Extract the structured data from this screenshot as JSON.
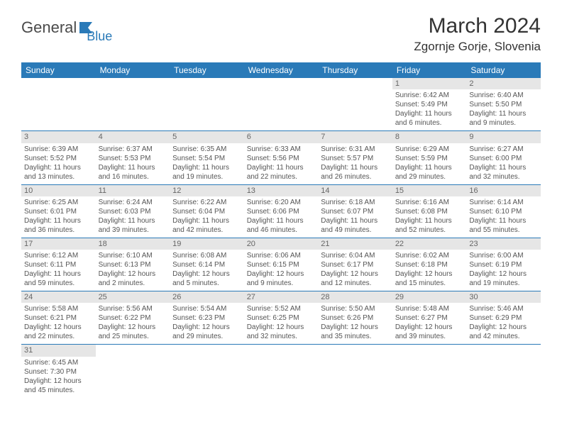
{
  "logo": {
    "text1": "General",
    "text2": "Blue"
  },
  "title": {
    "month": "March 2024",
    "location": "Zgornje Gorje, Slovenia"
  },
  "colors": {
    "headerBg": "#2a7ab8",
    "headerText": "#ffffff",
    "dayBg": "#e6e6e6",
    "ruleColor": "#2a7ab8"
  },
  "weekdays": [
    "Sunday",
    "Monday",
    "Tuesday",
    "Wednesday",
    "Thursday",
    "Friday",
    "Saturday"
  ],
  "startOffset": 5,
  "days": [
    {
      "n": "1",
      "sunrise": "Sunrise: 6:42 AM",
      "sunset": "Sunset: 5:49 PM",
      "day1": "Daylight: 11 hours",
      "day2": "and 6 minutes."
    },
    {
      "n": "2",
      "sunrise": "Sunrise: 6:40 AM",
      "sunset": "Sunset: 5:50 PM",
      "day1": "Daylight: 11 hours",
      "day2": "and 9 minutes."
    },
    {
      "n": "3",
      "sunrise": "Sunrise: 6:39 AM",
      "sunset": "Sunset: 5:52 PM",
      "day1": "Daylight: 11 hours",
      "day2": "and 13 minutes."
    },
    {
      "n": "4",
      "sunrise": "Sunrise: 6:37 AM",
      "sunset": "Sunset: 5:53 PM",
      "day1": "Daylight: 11 hours",
      "day2": "and 16 minutes."
    },
    {
      "n": "5",
      "sunrise": "Sunrise: 6:35 AM",
      "sunset": "Sunset: 5:54 PM",
      "day1": "Daylight: 11 hours",
      "day2": "and 19 minutes."
    },
    {
      "n": "6",
      "sunrise": "Sunrise: 6:33 AM",
      "sunset": "Sunset: 5:56 PM",
      "day1": "Daylight: 11 hours",
      "day2": "and 22 minutes."
    },
    {
      "n": "7",
      "sunrise": "Sunrise: 6:31 AM",
      "sunset": "Sunset: 5:57 PM",
      "day1": "Daylight: 11 hours",
      "day2": "and 26 minutes."
    },
    {
      "n": "8",
      "sunrise": "Sunrise: 6:29 AM",
      "sunset": "Sunset: 5:59 PM",
      "day1": "Daylight: 11 hours",
      "day2": "and 29 minutes."
    },
    {
      "n": "9",
      "sunrise": "Sunrise: 6:27 AM",
      "sunset": "Sunset: 6:00 PM",
      "day1": "Daylight: 11 hours",
      "day2": "and 32 minutes."
    },
    {
      "n": "10",
      "sunrise": "Sunrise: 6:25 AM",
      "sunset": "Sunset: 6:01 PM",
      "day1": "Daylight: 11 hours",
      "day2": "and 36 minutes."
    },
    {
      "n": "11",
      "sunrise": "Sunrise: 6:24 AM",
      "sunset": "Sunset: 6:03 PM",
      "day1": "Daylight: 11 hours",
      "day2": "and 39 minutes."
    },
    {
      "n": "12",
      "sunrise": "Sunrise: 6:22 AM",
      "sunset": "Sunset: 6:04 PM",
      "day1": "Daylight: 11 hours",
      "day2": "and 42 minutes."
    },
    {
      "n": "13",
      "sunrise": "Sunrise: 6:20 AM",
      "sunset": "Sunset: 6:06 PM",
      "day1": "Daylight: 11 hours",
      "day2": "and 46 minutes."
    },
    {
      "n": "14",
      "sunrise": "Sunrise: 6:18 AM",
      "sunset": "Sunset: 6:07 PM",
      "day1": "Daylight: 11 hours",
      "day2": "and 49 minutes."
    },
    {
      "n": "15",
      "sunrise": "Sunrise: 6:16 AM",
      "sunset": "Sunset: 6:08 PM",
      "day1": "Daylight: 11 hours",
      "day2": "and 52 minutes."
    },
    {
      "n": "16",
      "sunrise": "Sunrise: 6:14 AM",
      "sunset": "Sunset: 6:10 PM",
      "day1": "Daylight: 11 hours",
      "day2": "and 55 minutes."
    },
    {
      "n": "17",
      "sunrise": "Sunrise: 6:12 AM",
      "sunset": "Sunset: 6:11 PM",
      "day1": "Daylight: 11 hours",
      "day2": "and 59 minutes."
    },
    {
      "n": "18",
      "sunrise": "Sunrise: 6:10 AM",
      "sunset": "Sunset: 6:13 PM",
      "day1": "Daylight: 12 hours",
      "day2": "and 2 minutes."
    },
    {
      "n": "19",
      "sunrise": "Sunrise: 6:08 AM",
      "sunset": "Sunset: 6:14 PM",
      "day1": "Daylight: 12 hours",
      "day2": "and 5 minutes."
    },
    {
      "n": "20",
      "sunrise": "Sunrise: 6:06 AM",
      "sunset": "Sunset: 6:15 PM",
      "day1": "Daylight: 12 hours",
      "day2": "and 9 minutes."
    },
    {
      "n": "21",
      "sunrise": "Sunrise: 6:04 AM",
      "sunset": "Sunset: 6:17 PM",
      "day1": "Daylight: 12 hours",
      "day2": "and 12 minutes."
    },
    {
      "n": "22",
      "sunrise": "Sunrise: 6:02 AM",
      "sunset": "Sunset: 6:18 PM",
      "day1": "Daylight: 12 hours",
      "day2": "and 15 minutes."
    },
    {
      "n": "23",
      "sunrise": "Sunrise: 6:00 AM",
      "sunset": "Sunset: 6:19 PM",
      "day1": "Daylight: 12 hours",
      "day2": "and 19 minutes."
    },
    {
      "n": "24",
      "sunrise": "Sunrise: 5:58 AM",
      "sunset": "Sunset: 6:21 PM",
      "day1": "Daylight: 12 hours",
      "day2": "and 22 minutes."
    },
    {
      "n": "25",
      "sunrise": "Sunrise: 5:56 AM",
      "sunset": "Sunset: 6:22 PM",
      "day1": "Daylight: 12 hours",
      "day2": "and 25 minutes."
    },
    {
      "n": "26",
      "sunrise": "Sunrise: 5:54 AM",
      "sunset": "Sunset: 6:23 PM",
      "day1": "Daylight: 12 hours",
      "day2": "and 29 minutes."
    },
    {
      "n": "27",
      "sunrise": "Sunrise: 5:52 AM",
      "sunset": "Sunset: 6:25 PM",
      "day1": "Daylight: 12 hours",
      "day2": "and 32 minutes."
    },
    {
      "n": "28",
      "sunrise": "Sunrise: 5:50 AM",
      "sunset": "Sunset: 6:26 PM",
      "day1": "Daylight: 12 hours",
      "day2": "and 35 minutes."
    },
    {
      "n": "29",
      "sunrise": "Sunrise: 5:48 AM",
      "sunset": "Sunset: 6:27 PM",
      "day1": "Daylight: 12 hours",
      "day2": "and 39 minutes."
    },
    {
      "n": "30",
      "sunrise": "Sunrise: 5:46 AM",
      "sunset": "Sunset: 6:29 PM",
      "day1": "Daylight: 12 hours",
      "day2": "and 42 minutes."
    },
    {
      "n": "31",
      "sunrise": "Sunrise: 6:45 AM",
      "sunset": "Sunset: 7:30 PM",
      "day1": "Daylight: 12 hours",
      "day2": "and 45 minutes."
    }
  ]
}
